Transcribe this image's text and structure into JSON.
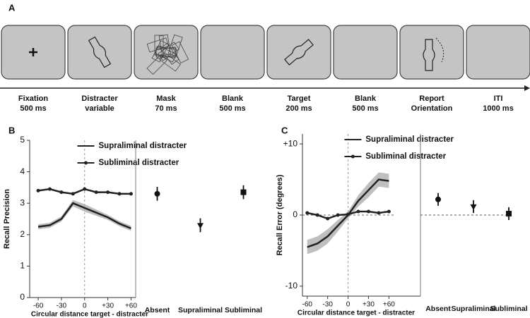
{
  "panel_a": {
    "label": "A",
    "frames": [
      {
        "name": "Fixation",
        "detail": "500 ms"
      },
      {
        "name": "Distracter",
        "detail": "variable"
      },
      {
        "name": "Mask",
        "detail": "70 ms"
      },
      {
        "name": "Blank",
        "detail": "500 ms"
      },
      {
        "name": "Target",
        "detail": "200 ms"
      },
      {
        "name": "Blank",
        "detail": "500 ms"
      },
      {
        "name": "Report",
        "detail": "Orientation"
      },
      {
        "name": "ITI",
        "detail": "1000 ms"
      }
    ]
  },
  "chart_data": [
    {
      "type": "line",
      "panel": "B",
      "ylabel": "Recall Precision",
      "xlabel": "Circular distance target - distracter",
      "x": [
        -60,
        -45,
        -30,
        -15,
        0,
        15,
        30,
        45,
        60
      ],
      "series": [
        {
          "name": "Supraliminal distracter",
          "color": "#222222",
          "values": [
            2.25,
            2.3,
            2.5,
            3.0,
            2.85,
            2.7,
            2.55,
            2.35,
            2.2
          ],
          "error": [
            0.08,
            0.08,
            0.08,
            0.1,
            0.12,
            0.1,
            0.08,
            0.08,
            0.08
          ]
        },
        {
          "name": "Subliminal distracter",
          "color": "#222222",
          "values": [
            3.4,
            3.45,
            3.35,
            3.3,
            3.45,
            3.35,
            3.35,
            3.3,
            3.3
          ],
          "marker": "circle"
        }
      ],
      "xlim": [
        -71,
        66
      ],
      "ylim": [
        0,
        5
      ],
      "xticks": [
        -60,
        -30,
        0,
        {
          "value": 30,
          "label": "+30"
        },
        {
          "value": 60,
          "label": "+60"
        }
      ],
      "yticks": [
        0,
        1,
        2,
        3,
        4,
        5
      ],
      "vline": 0
    },
    {
      "type": "errorbar",
      "categories": [
        "Absent",
        "Supraliminal",
        "Subliminal"
      ],
      "values": [
        3.3,
        2.3,
        3.35
      ],
      "errors": [
        0.22,
        0.22,
        0.22
      ],
      "markers": [
        "circle",
        "triangle",
        "square"
      ],
      "color": "#111111",
      "ylim": [
        0,
        5
      ]
    },
    {
      "type": "line",
      "panel": "C",
      "ylabel": "Recall Error (degrees)",
      "xlabel": "Circular distance target - distracter",
      "x": [
        -60,
        -45,
        -30,
        -15,
        0,
        15,
        30,
        45,
        60
      ],
      "series": [
        {
          "name": "Supraliminal distracter",
          "color": "#222222",
          "values": [
            -4.5,
            -4,
            -3,
            -1.5,
            0,
            2,
            3.5,
            5,
            4.8
          ],
          "error": [
            1,
            1,
            1,
            0.8,
            0.5,
            0.8,
            1,
            1,
            1
          ]
        },
        {
          "name": "Subliminal distracter",
          "color": "#222222",
          "values": [
            0.3,
            0,
            -0.5,
            0,
            0.1,
            0.5,
            0.5,
            0.3,
            0.5
          ],
          "marker": "circle"
        }
      ],
      "xlim": [
        -67,
        70
      ],
      "ylim": [
        -11.4,
        11.4
      ],
      "xticks": [
        -60,
        -30,
        0,
        {
          "value": 30,
          "label": "+30"
        },
        {
          "value": 60,
          "label": "+60"
        }
      ],
      "yticks": [
        -10,
        0,
        {
          "value": 10,
          "label": "+10"
        }
      ],
      "vline": 0,
      "hline": 0
    },
    {
      "type": "errorbar",
      "categories": [
        "Absent",
        "Supraliminal",
        "Subliminal"
      ],
      "values": [
        2.2,
        1.2,
        0.2
      ],
      "errors": [
        0.9,
        0.9,
        0.9
      ],
      "markers": [
        "circle",
        "triangle",
        "square"
      ],
      "color": "#111111",
      "ylim": [
        -11.4,
        11.4
      ],
      "hline": 0
    }
  ]
}
